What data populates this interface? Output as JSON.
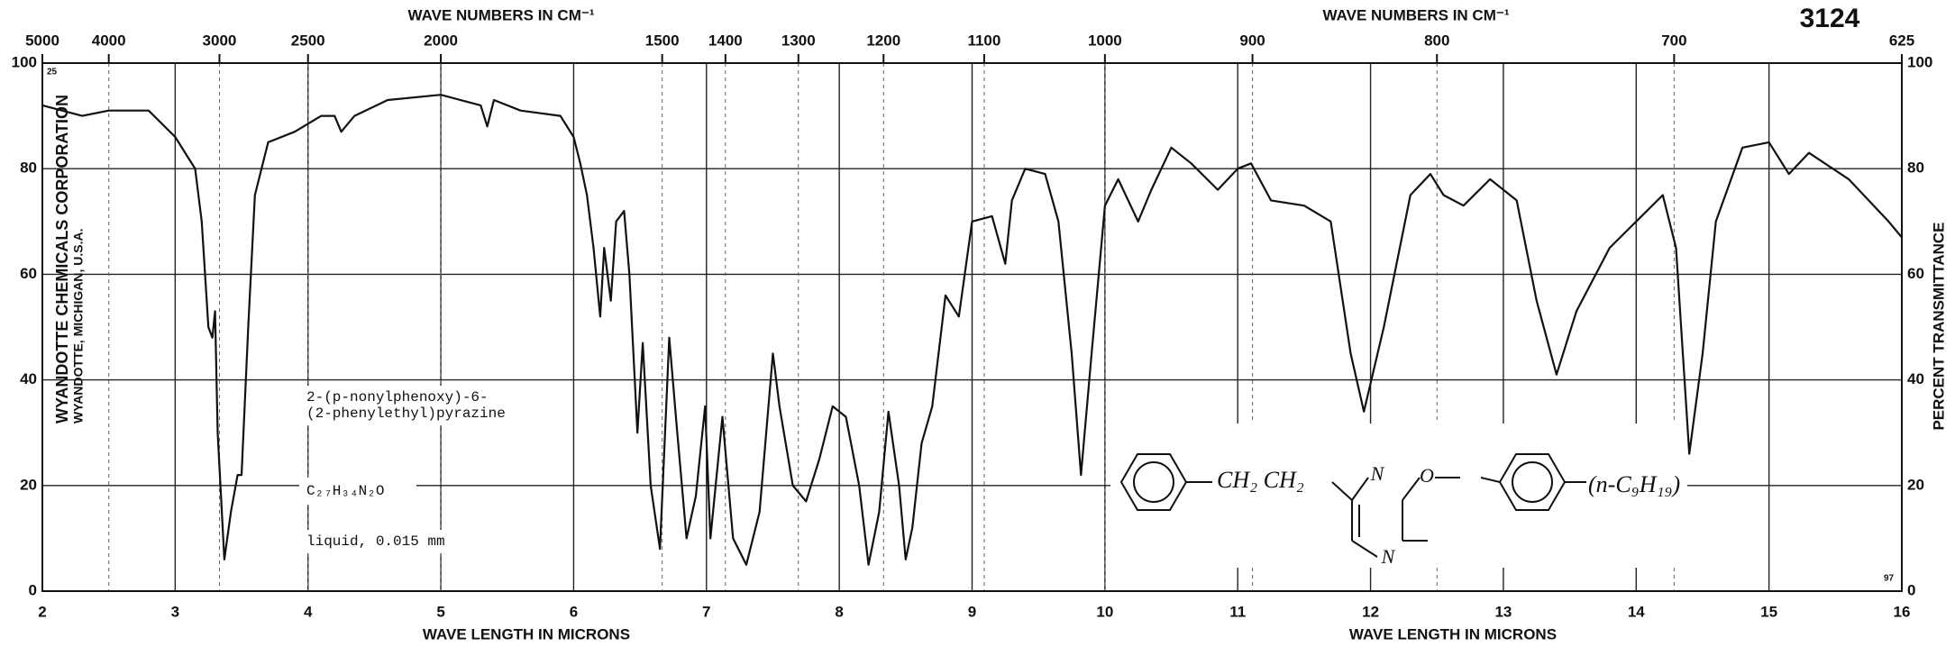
{
  "chart_data": {
    "type": "line",
    "id_number": "3124",
    "x_label": "WAVE LENGTH IN MICRONS",
    "x2_label": "WAVE NUMBERS IN CM⁻¹",
    "y_label": "PERCENT TRANSMITTANCE",
    "publisher": [
      "WYANDOTTE CHEMICALS CORPORATION",
      "WYANDOTTE, MICHIGAN, U.S.A."
    ],
    "compound": [
      "2-(p-nonylphenoxy)-6-",
      "(2-phenylethyl)pyrazine"
    ],
    "formula": "C₂₇H₃₄N₂O",
    "sample": "liquid, 0.015 mm",
    "structure_labels": [
      "CH₂ CH₂",
      "N",
      "N",
      "O",
      "(n-C₉H₁₉)"
    ],
    "corner_marks": [
      "25",
      "97"
    ],
    "color": "#111111",
    "grid": true,
    "xlim": [
      2,
      16
    ],
    "xticks": [
      2,
      3,
      4,
      5,
      6,
      7,
      8,
      9,
      10,
      11,
      12,
      13,
      14,
      15,
      16
    ],
    "x2ticks": [
      5000,
      4000,
      3000,
      2500,
      2000,
      1500,
      1400,
      1300,
      1200,
      1100,
      1000,
      900,
      800,
      700,
      625
    ],
    "ylim": [
      0,
      100
    ],
    "yticks": [
      0,
      20,
      40,
      60,
      80,
      100
    ],
    "x": [
      2.0,
      2.3,
      2.5,
      2.8,
      3.0,
      3.1,
      3.15,
      3.2,
      3.25,
      3.28,
      3.3,
      3.32,
      3.37,
      3.42,
      3.47,
      3.5,
      3.55,
      3.6,
      3.7,
      3.9,
      4.1,
      4.2,
      4.25,
      4.35,
      4.6,
      5.0,
      5.3,
      5.35,
      5.4,
      5.6,
      5.9,
      6.0,
      6.05,
      6.1,
      6.15,
      6.2,
      6.23,
      6.28,
      6.32,
      6.38,
      6.42,
      6.48,
      6.52,
      6.58,
      6.65,
      6.72,
      6.78,
      6.85,
      6.92,
      6.99,
      7.03,
      7.12,
      7.2,
      7.3,
      7.4,
      7.5,
      7.55,
      7.65,
      7.75,
      7.85,
      7.95,
      8.05,
      8.15,
      8.22,
      8.3,
      8.37,
      8.45,
      8.5,
      8.55,
      8.62,
      8.7,
      8.8,
      8.9,
      9.0,
      9.15,
      9.25,
      9.3,
      9.4,
      9.55,
      9.65,
      9.75,
      9.82,
      9.9,
      10.0,
      10.1,
      10.25,
      10.35,
      10.5,
      10.65,
      10.85,
      11.0,
      11.1,
      11.25,
      11.5,
      11.7,
      11.85,
      11.95,
      12.1,
      12.3,
      12.45,
      12.55,
      12.7,
      12.9,
      13.1,
      13.25,
      13.4,
      13.55,
      13.8,
      14.0,
      14.2,
      14.3,
      14.4,
      14.5,
      14.6,
      14.8,
      15.0,
      15.15,
      15.3,
      15.6,
      15.9,
      16.0
    ],
    "values": [
      92,
      90,
      91,
      91,
      86,
      82,
      80,
      70,
      50,
      48,
      53,
      30,
      6,
      15,
      22,
      22,
      50,
      75,
      85,
      87,
      90,
      90,
      87,
      90,
      93,
      94,
      92,
      88,
      93,
      91,
      90,
      86,
      81,
      75,
      65,
      52,
      65,
      55,
      70,
      72,
      60,
      30,
      47,
      20,
      8,
      48,
      30,
      10,
      18,
      35,
      10,
      33,
      10,
      5,
      15,
      45,
      35,
      20,
      17,
      25,
      35,
      33,
      20,
      5,
      15,
      34,
      20,
      6,
      12,
      28,
      35,
      56,
      52,
      70,
      71,
      62,
      74,
      80,
      79,
      70,
      45,
      22,
      45,
      73,
      78,
      70,
      76,
      84,
      81,
      76,
      80,
      81,
      74,
      73,
      70,
      45,
      34,
      50,
      75,
      79,
      75,
      73,
      78,
      74,
      55,
      41,
      53,
      65,
      70,
      75,
      65,
      26,
      45,
      70,
      84,
      85,
      79,
      83,
      78,
      70,
      67
    ]
  }
}
